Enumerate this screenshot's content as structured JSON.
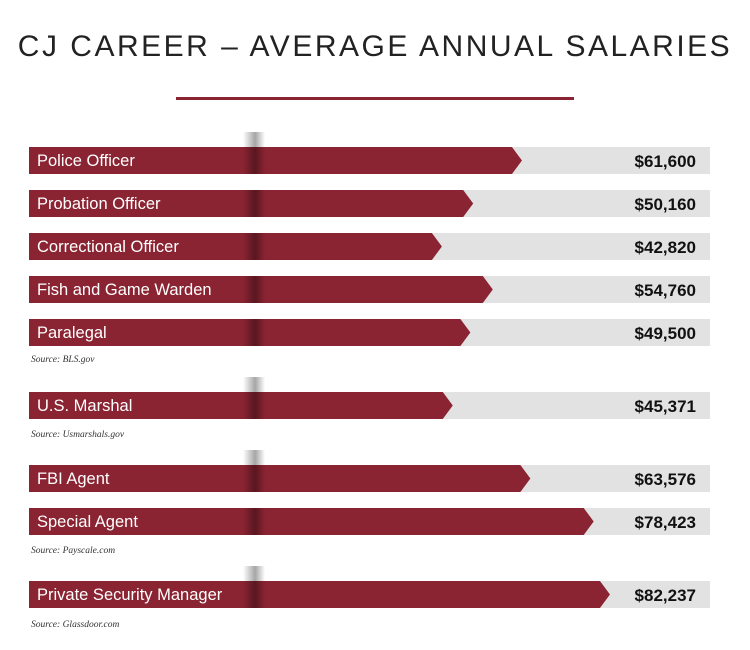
{
  "chart_data": {
    "type": "bar",
    "orientation": "horizontal",
    "title": "CJ CAREER – AVERAGE ANNUAL SALARIES",
    "bar_color": "#8a2332",
    "track_color": "#e2e2e2",
    "groups": [
      {
        "source": "Source: BLS.gov",
        "items": [
          {
            "label": "Police Officer",
            "value": 61600,
            "value_label": "$61,600"
          },
          {
            "label": "Probation Officer",
            "value": 50160,
            "value_label": "$50,160"
          },
          {
            "label": "Correctional Officer",
            "value": 42820,
            "value_label": "$42,820"
          },
          {
            "label": "Fish and Game Warden",
            "value": 54760,
            "value_label": "$54,760"
          },
          {
            "label": "Paralegal",
            "value": 49500,
            "value_label": "$49,500"
          }
        ]
      },
      {
        "source": "Source: Usmarshals.gov",
        "items": [
          {
            "label": "U.S. Marshal",
            "value": 45371,
            "value_label": "$45,371"
          }
        ]
      },
      {
        "source": "Source: Payscale.com",
        "items": [
          {
            "label": "FBI Agent",
            "value": 63576,
            "value_label": "$63,576"
          },
          {
            "label": "Special Agent",
            "value": 78423,
            "value_label": "$78,423"
          }
        ]
      },
      {
        "source": "Source: Glassdoor.com",
        "items": [
          {
            "label": "Private Security Manager",
            "value": 82237,
            "value_label": "$82,237"
          }
        ]
      }
    ]
  }
}
